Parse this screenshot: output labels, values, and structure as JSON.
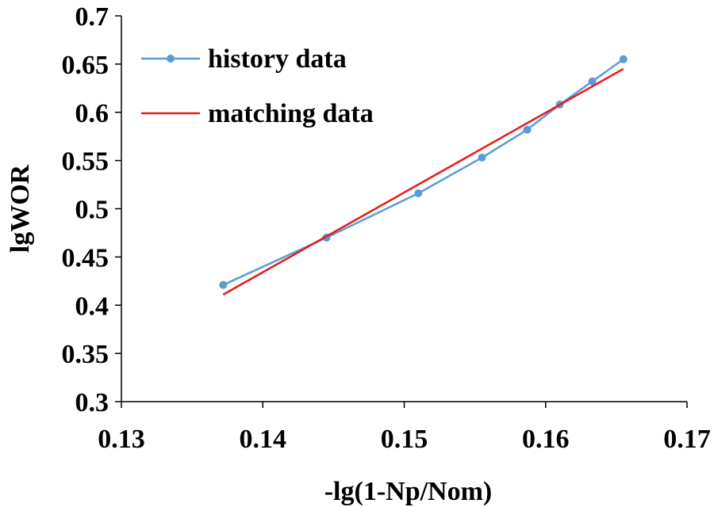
{
  "chart_data": {
    "type": "line",
    "title": "",
    "xlabel": "-lg(1-Np/Nom)",
    "ylabel": "lgWOR",
    "xlim": [
      0.13,
      0.17
    ],
    "ylim": [
      0.3,
      0.7
    ],
    "x_ticks": [
      0.13,
      0.14,
      0.15,
      0.16,
      0.17
    ],
    "x_tick_labels": [
      "0.13",
      "0.14",
      "0.15",
      "0.16",
      "0.17"
    ],
    "y_ticks": [
      0.3,
      0.35,
      0.4,
      0.45,
      0.5,
      0.55,
      0.6,
      0.65,
      0.7
    ],
    "y_tick_labels": [
      "0.3",
      "0.35",
      "0.4",
      "0.45",
      "0.5",
      "0.55",
      "0.6",
      "0.65",
      "0.7"
    ],
    "grid": false,
    "legend_position": "top-left",
    "series": [
      {
        "name": "history data",
        "color": "#5B9BD5",
        "marker": "circle",
        "x": [
          0.1372,
          0.1445,
          0.151,
          0.1555,
          0.1587,
          0.161,
          0.1633,
          0.1655
        ],
        "y": [
          0.421,
          0.47,
          0.516,
          0.553,
          0.582,
          0.608,
          0.632,
          0.655
        ]
      },
      {
        "name": "matching data",
        "color": "#E41A1C",
        "marker": "none",
        "x": [
          0.1372,
          0.1655
        ],
        "y": [
          0.411,
          0.645
        ]
      }
    ]
  }
}
